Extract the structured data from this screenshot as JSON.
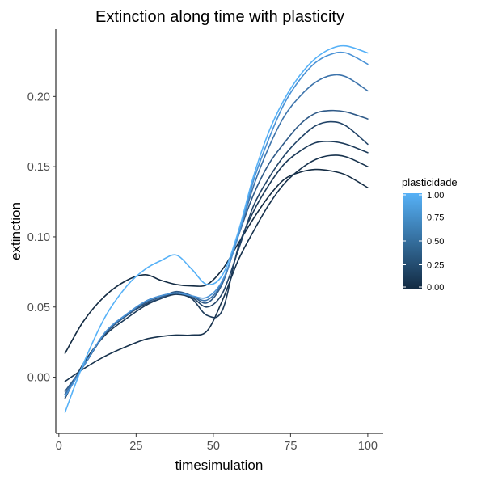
{
  "chart_data": {
    "type": "line",
    "title": "Extinction along time with plasticity",
    "xlabel": "timesimulation",
    "ylabel": "extinction",
    "xlim": [
      -1,
      105
    ],
    "ylim": [
      -0.04,
      0.248
    ],
    "x_ticks": [
      0,
      25,
      50,
      75,
      100
    ],
    "x_tick_labels": [
      "0",
      "25",
      "50",
      "75",
      "100"
    ],
    "y_ticks": [
      0.0,
      0.05,
      0.1,
      0.15,
      0.2
    ],
    "y_tick_labels": [
      "0.00",
      "0.05",
      "0.10",
      "0.15",
      "0.20"
    ],
    "grid": false,
    "legend": {
      "title": "plasticidade",
      "type": "colorbar",
      "placement": "right",
      "low_color": "#132B43",
      "high_color": "#56B1F7",
      "ticks": [
        0,
        0.25,
        0.5,
        0.75,
        1.0
      ],
      "tick_labels": [
        "0.00",
        "0.25",
        "0.50",
        "0.75",
        "1.00"
      ]
    },
    "x": [
      2,
      8,
      15,
      22,
      28,
      33,
      38,
      43,
      48,
      53,
      58,
      63,
      68,
      73,
      78,
      83,
      88,
      93,
      100
    ],
    "series": [
      {
        "plasticity": 0.0,
        "color": "#132B43",
        "values": [
          0.017,
          0.04,
          0.058,
          0.069,
          0.073,
          0.069,
          0.066,
          0.065,
          0.066,
          0.077,
          0.095,
          0.113,
          0.129,
          0.141,
          0.146,
          0.148,
          0.147,
          0.144,
          0.135
        ]
      },
      {
        "plasticity": 0.1,
        "color": "#17324D",
        "values": [
          -0.003,
          0.006,
          0.015,
          0.022,
          0.027,
          0.029,
          0.03,
          0.03,
          0.033,
          0.055,
          0.083,
          0.104,
          0.123,
          0.138,
          0.148,
          0.155,
          0.158,
          0.157,
          0.15
        ]
      },
      {
        "plasticity": 0.2,
        "color": "#1C3A59",
        "values": [
          -0.015,
          0.01,
          0.03,
          0.042,
          0.051,
          0.056,
          0.059,
          0.056,
          0.044,
          0.048,
          0.092,
          0.118,
          0.137,
          0.152,
          0.161,
          0.167,
          0.168,
          0.166,
          0.16
        ]
      },
      {
        "plasticity": 0.3,
        "color": "#224468",
        "values": [
          -0.012,
          0.008,
          0.031,
          0.044,
          0.052,
          0.056,
          0.06,
          0.057,
          0.05,
          0.06,
          0.09,
          0.122,
          0.142,
          0.158,
          0.17,
          0.179,
          0.182,
          0.179,
          0.166
        ]
      },
      {
        "plasticity": 0.5,
        "color": "#2F5A88",
        "values": [
          -0.01,
          0.008,
          0.031,
          0.044,
          0.053,
          0.057,
          0.061,
          0.058,
          0.053,
          0.067,
          0.1,
          0.13,
          0.152,
          0.167,
          0.18,
          0.188,
          0.19,
          0.189,
          0.184
        ]
      },
      {
        "plasticity": 0.7,
        "color": "#3C73AB",
        "values": [
          -0.012,
          0.008,
          0.032,
          0.045,
          0.054,
          0.058,
          0.06,
          0.058,
          0.055,
          0.068,
          0.1,
          0.136,
          0.164,
          0.186,
          0.2,
          0.21,
          0.215,
          0.214,
          0.204
        ]
      },
      {
        "plasticity": 0.9,
        "color": "#4A92D6",
        "values": [
          -0.014,
          0.008,
          0.032,
          0.045,
          0.054,
          0.058,
          0.06,
          0.058,
          0.057,
          0.069,
          0.1,
          0.14,
          0.17,
          0.195,
          0.212,
          0.224,
          0.23,
          0.231,
          0.223
        ]
      },
      {
        "plasticity": 1.0,
        "color": "#56B1F7",
        "values": [
          -0.025,
          0.01,
          0.043,
          0.065,
          0.077,
          0.083,
          0.087,
          0.077,
          0.066,
          0.073,
          0.103,
          0.143,
          0.175,
          0.198,
          0.215,
          0.227,
          0.234,
          0.236,
          0.231
        ]
      }
    ]
  }
}
